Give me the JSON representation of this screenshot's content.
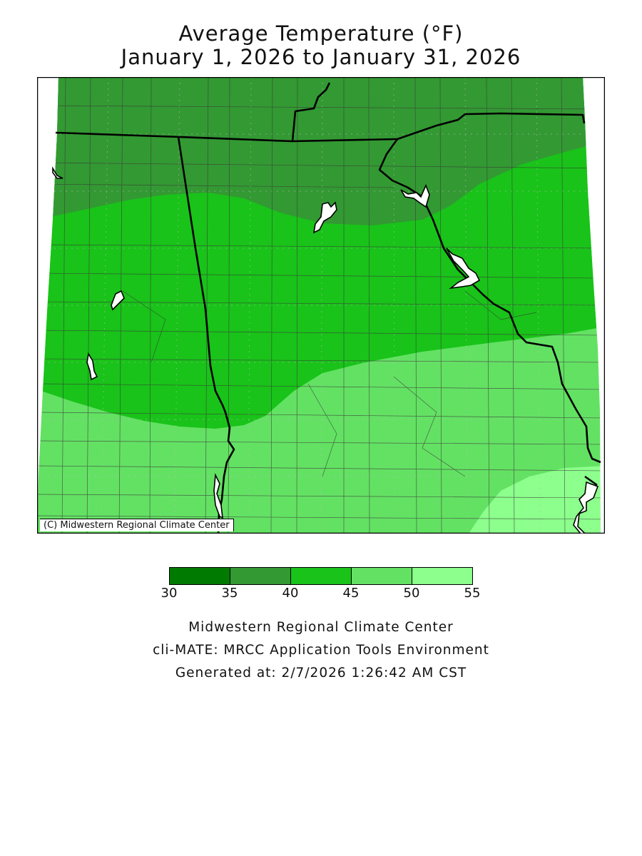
{
  "title_line1": "Average Temperature (°F)",
  "title_line2": "January 1, 2026 to January 31, 2026",
  "credit": "(C) Midwestern Regional Climate Center",
  "legend": {
    "bins": [
      {
        "from": 30,
        "to": 35,
        "color": "#007a00"
      },
      {
        "from": 35,
        "to": 40,
        "color": "#339933"
      },
      {
        "from": 40,
        "to": 45,
        "color": "#19c319"
      },
      {
        "from": 45,
        "to": 50,
        "color": "#63e163"
      },
      {
        "from": 50,
        "to": 55,
        "color": "#8cff8c"
      }
    ],
    "ticks": [
      "30",
      "35",
      "40",
      "45",
      "50",
      "55"
    ]
  },
  "footer": {
    "line1": "Midwestern Regional Climate Center",
    "line2": "cli-MATE: MRCC Application Tools Environment",
    "line3": "Generated at: 2/7/2026 1:26:42 AM CST"
  },
  "colors": {
    "band_35_40": "#339933",
    "band_40_45": "#19c319",
    "band_45_50": "#63e163",
    "band_50_55": "#8cff8c",
    "border": "#000000",
    "county_line": "#3a3a3a",
    "water": "#ffffff"
  }
}
